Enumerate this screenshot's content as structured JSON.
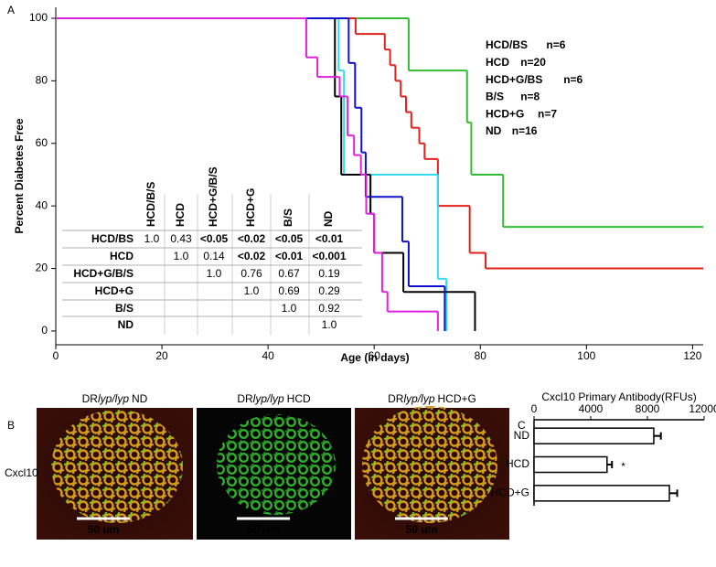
{
  "panel_labels": [
    "A",
    "B",
    "C"
  ],
  "chart_data": [
    {
      "type": "step",
      "xlabel": "Age (in days)",
      "ylabel": "Percent Diabetes Free",
      "xlim": [
        0,
        122
      ],
      "ylim": [
        -4.4,
        103.5
      ],
      "xticks": [
        0,
        20,
        40,
        60,
        80,
        100,
        120
      ],
      "yticks": [
        0,
        20,
        40,
        60,
        80,
        100
      ],
      "series": [
        {
          "name": "HCD/BS",
          "n": "n=6",
          "color": "#33bb33",
          "x": [
            0,
            66.5,
            77.5,
            78.3,
            84.3,
            122
          ],
          "values": [
            100,
            83.3,
            66.7,
            50,
            33.3,
            33.3
          ]
        },
        {
          "name": "HCD",
          "n": "n=20",
          "color": "#e0201b",
          "x": [
            0,
            56.5,
            62,
            63,
            64,
            65,
            66,
            67,
            68.5,
            69.5,
            72,
            78,
            81,
            122
          ],
          "values": [
            100,
            95,
            90,
            85,
            80,
            75,
            70,
            65,
            60,
            55,
            40,
            25,
            20,
            20
          ]
        },
        {
          "name": "HCD+G/BS",
          "n": "n=6",
          "color": "#33ddee",
          "x": [
            0,
            53.3,
            54.3,
            72,
            73.6
          ],
          "values": [
            100,
            83.3,
            50,
            16.7,
            0
          ]
        },
        {
          "name": "B/S",
          "n": "n=8",
          "color": "#000000",
          "x": [
            0,
            52.6,
            53.8,
            59.3,
            60,
            65.5,
            79
          ],
          "values": [
            100,
            75,
            50,
            37.5,
            25,
            12.5,
            0
          ]
        },
        {
          "name": "HCD+G",
          "n": "n=7",
          "color": "#1010cc",
          "x": [
            0,
            55.2,
            56.4,
            57.6,
            58.4,
            65.3,
            66.5,
            73.3
          ],
          "values": [
            100,
            85.7,
            71.4,
            57.1,
            42.9,
            28.6,
            14.3,
            0
          ]
        },
        {
          "name": "ND",
          "n": "n=16",
          "color": "#dd22dd",
          "x": [
            0,
            47.2,
            49.3,
            53.5,
            55,
            56.2,
            57.5,
            58.5,
            60,
            61.5,
            62.5,
            72
          ],
          "values": [
            100,
            87.5,
            81.25,
            75,
            62.5,
            56.25,
            50,
            37.5,
            25,
            12.5,
            6.25,
            0
          ]
        }
      ]
    },
    {
      "type": "hbar",
      "title": "Cxcl10 Primary Antibody(RFUs)",
      "categories": [
        "ND",
        "HCD",
        "HCD+G"
      ],
      "values": [
        8450,
        5150,
        9550
      ],
      "errors": [
        500,
        350,
        550
      ],
      "annotations": [
        null,
        "*",
        null
      ],
      "color": "#ffffff",
      "xlim": [
        0,
        12000
      ],
      "xticks": [
        0,
        4000,
        8000,
        12000
      ]
    }
  ],
  "pvalue_table": {
    "columns": [
      {
        "label": "HCD/B/S",
        "color": "#33bb33"
      },
      {
        "label": "HCD",
        "color": "#e0201b"
      },
      {
        "label": "HCD+G/B/S",
        "color": "#33ddee"
      },
      {
        "label": "HCD+G",
        "color": "#1010cc"
      },
      {
        "label": "B/S",
        "color": "#000000"
      },
      {
        "label": "ND",
        "color": "#dd22dd"
      }
    ],
    "rows": [
      {
        "label": "HCD/BS",
        "color": "#33bb33",
        "cells": [
          "1.0",
          "0.43",
          "<0.05",
          "<0.02",
          "<0.05",
          "<0.01"
        ]
      },
      {
        "label": "HCD",
        "color": "#e0201b",
        "cells": [
          null,
          "1.0",
          "0.14",
          "<0.02",
          "<0.01",
          "<0.001"
        ]
      },
      {
        "label": "HCD+G/B/S",
        "color": "#33ddee",
        "cells": [
          null,
          null,
          "1.0",
          "0.76",
          "0.67",
          "0.19"
        ]
      },
      {
        "label": "HCD+G",
        "color": "#1010cc",
        "cells": [
          null,
          null,
          null,
          "1.0",
          "0.69",
          "0.29"
        ]
      },
      {
        "label": "B/S",
        "color": "#000000",
        "cells": [
          null,
          null,
          null,
          null,
          "1.0",
          "0.92"
        ]
      },
      {
        "label": "ND",
        "color": "#dd22dd",
        "cells": [
          null,
          null,
          null,
          null,
          null,
          "1.0"
        ]
      }
    ]
  },
  "micrographs": {
    "row_label": "Cxcl10",
    "images": [
      {
        "caption": {
          "prefix": "DR",
          "italic": "lyp/lyp",
          "suffix": "ND"
        },
        "scale_bar": "50 um"
      },
      {
        "caption": {
          "prefix": "DR",
          "italic": "lyp/lyp",
          "suffix": "HCD"
        },
        "scale_bar": "50 um"
      },
      {
        "caption": {
          "prefix": "DR",
          "italic": "lyp/lyp",
          "suffix": "HCD+G"
        },
        "scale_bar": "50 um"
      }
    ]
  }
}
